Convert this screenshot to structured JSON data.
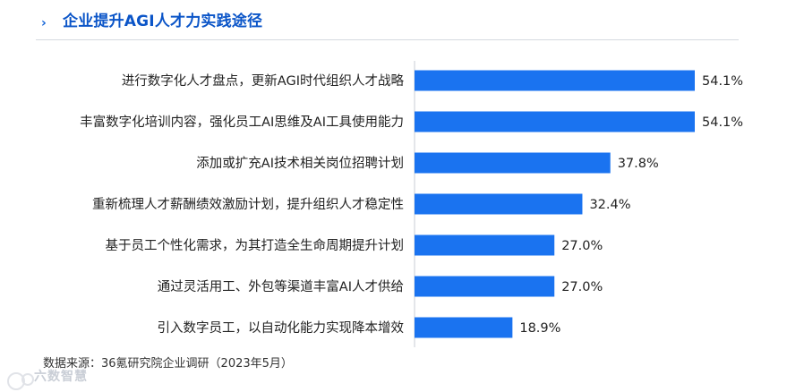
{
  "header": {
    "chevron": "›",
    "title": "企业提升AGI人才力实践途径"
  },
  "chart_data": {
    "type": "bar",
    "orientation": "horizontal",
    "title": "企业提升AGI人才力实践途径",
    "categories": [
      "进行数字化人才盘点，更新AGI时代组织人才战略",
      "丰富数字化培训内容，强化员工AI思维及AI工具使用能力",
      "添加或扩充AI技术相关岗位招聘计划",
      "重新梳理人才薪酬绩效激励计划，提升组织人才稳定性",
      "基于员工个性化需求，为其打造全生命周期提升计划",
      "通过灵活用工、外包等渠道丰富AI人才供给",
      "引入数字员工，以自动化能力实现降本增效"
    ],
    "values": [
      54.1,
      54.1,
      37.8,
      32.4,
      27.0,
      27.0,
      18.9
    ],
    "value_labels": [
      "54.1%",
      "54.1%",
      "37.8%",
      "32.4%",
      "27.0%",
      "27.0%",
      "18.9%"
    ],
    "unit": "%",
    "xlim": [
      0,
      54.1
    ],
    "grid": false,
    "bar_color": "#1a73f0"
  },
  "footer": {
    "source": "数据来源：36氪研究院企业调研（2023年5月）"
  },
  "watermark": {
    "text": "六数智慧"
  }
}
